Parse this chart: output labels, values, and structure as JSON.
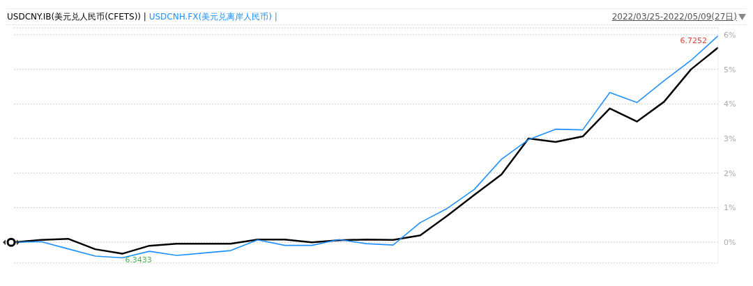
{
  "chart_data": {
    "type": "line",
    "subtitle": "2022/03/25-2022/05/09(27日)",
    "categories": [
      null,
      null,
      null,
      null,
      null,
      null,
      null,
      null,
      null,
      null,
      null,
      null,
      null,
      null,
      null,
      null,
      null,
      null,
      null,
      null,
      null,
      null,
      null,
      null,
      null,
      null,
      null
    ],
    "series": [
      {
        "name": "USDCNY.IB(美元兑人民币(CFETS)) |",
        "color": "#000000",
        "values": [
          0,
          0.07,
          0.1,
          -0.2,
          -0.33,
          -0.1,
          -0.04,
          -0.04,
          -0.04,
          0.08,
          0.08,
          0,
          0.06,
          0.08,
          0.07,
          0.2,
          0.77,
          1.37,
          1.96,
          3.0,
          2.9,
          3.06,
          3.87,
          3.49,
          4.06,
          5.0,
          5.63
        ]
      },
      {
        "name": "USDCNH.FX(美元兑离岸人民币) |",
        "color": "#1e90ff",
        "values": [
          0,
          0.02,
          -0.19,
          -0.4,
          -0.45,
          -0.26,
          -0.38,
          -0.31,
          -0.24,
          0.07,
          -0.09,
          -0.09,
          0.08,
          -0.04,
          -0.08,
          0.57,
          0.98,
          1.53,
          2.4,
          2.97,
          3.27,
          3.25,
          4.33,
          4.04,
          4.67,
          5.26,
          5.97
        ]
      }
    ],
    "ylim": [
      -0.6,
      6.2
    ],
    "yticks": [
      {
        "value": 0,
        "label": "0%"
      },
      {
        "value": 1,
        "label": "1%"
      },
      {
        "value": 2,
        "label": "2%"
      },
      {
        "value": 3,
        "label": "3%"
      },
      {
        "value": 4,
        "label": "4%"
      },
      {
        "value": 5,
        "label": "5%"
      },
      {
        "value": 6,
        "label": "6%"
      }
    ],
    "tick_labels": "y",
    "grid": "y",
    "legend": "top left",
    "marker": "none",
    "line_style": "solid",
    "annotations": [
      "6.7252",
      "6.3433"
    ]
  }
}
